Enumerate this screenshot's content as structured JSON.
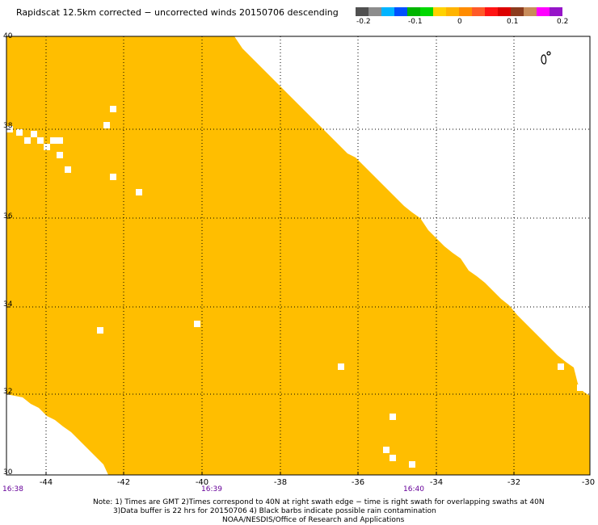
{
  "title": "Rapidscat 12.5km corrected − uncorrected winds 20150706 descending",
  "colorbar": {
    "colors": [
      "#505050",
      "#8c8c8c",
      "#00b4ff",
      "#0050ff",
      "#00b400",
      "#00d800",
      "#ffd200",
      "#ffb400",
      "#ff8c00",
      "#ff5a28",
      "#ff1414",
      "#dc0000",
      "#8c3c1e",
      "#c88c5a",
      "#ff00ff",
      "#9614c8"
    ],
    "tick_labels": [
      "-0.2",
      "-0.1",
      "0",
      "0.1",
      "0.2"
    ]
  },
  "map": {
    "fill_color": "#ffbe00",
    "lat_range": [
      30,
      40
    ],
    "lon_range": [
      -45,
      -30
    ],
    "lat_labels": [
      "40",
      "38",
      "36",
      "34",
      "32",
      "30"
    ],
    "lon_labels": [
      "-44",
      "-42",
      "-40",
      "-38",
      "-36",
      "-34",
      "-32",
      "-30"
    ],
    "time_labels": [
      "16:38",
      "16:39",
      "16:40"
    ]
  },
  "notes": {
    "line1": "Note: 1) Times are GMT 2)Times correspond to 40N at right swath edge − time is right swath for overlapping swaths at 40N",
    "line2": "3)Data buffer is 22 hrs for 20150706 4) Black barbs indicate possible rain contamination",
    "line3": "NOAA/NESDIS/Office of Research and Applications"
  }
}
